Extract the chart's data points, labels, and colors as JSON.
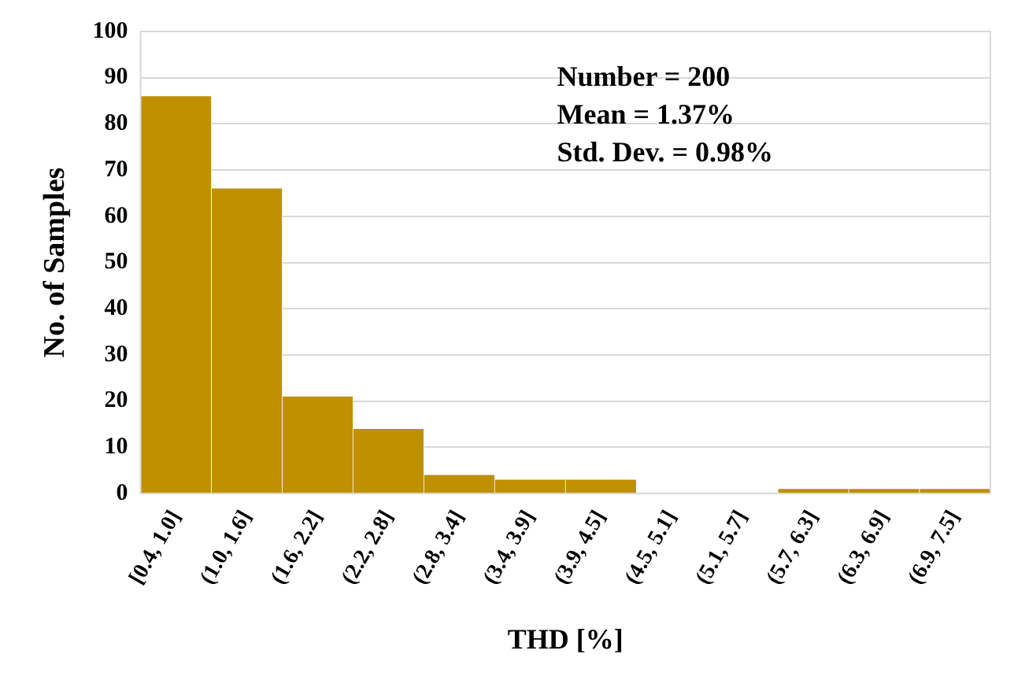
{
  "chart_data": {
    "type": "bar",
    "xlabel": "THD [%]",
    "ylabel": "No. of Samples",
    "categories": [
      "[0.4, 1.0]",
      "(1.0, 1.6]",
      "(1.6, 2.2]",
      "(2.2, 2.8]",
      "(2.8, 3.4]",
      "(3.4, 3.9]",
      "(3.9, 4.5]",
      "(4.5, 5.1]",
      "(5.1, 5.7]",
      "(5.7, 6.3]",
      "(6.3, 6.9]",
      "(6.9, 7.5]"
    ],
    "values": [
      86,
      66,
      21,
      14,
      4,
      3,
      3,
      0,
      0,
      1,
      1,
      1
    ],
    "color": "#bf9000",
    "ylim": [
      0,
      100
    ],
    "yticks": [
      0,
      10,
      20,
      30,
      40,
      50,
      60,
      70,
      80,
      90,
      100
    ],
    "grid": "y",
    "legend": false,
    "annotations": [
      "Number = 200",
      "Mean = 1.37%",
      "Std. Dev. = 0.98%"
    ]
  }
}
